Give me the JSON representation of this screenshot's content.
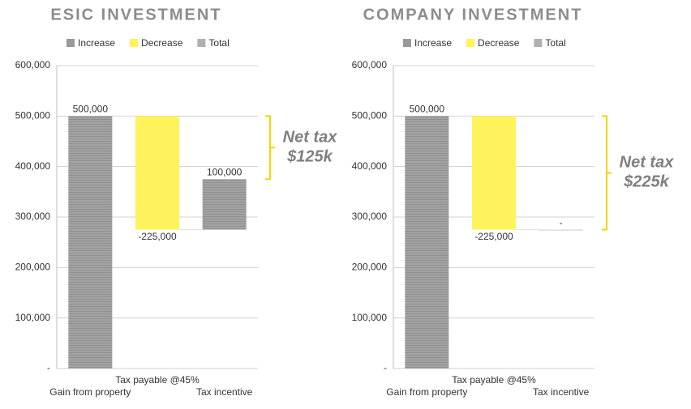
{
  "chart_data": [
    {
      "type": "waterfall",
      "title": "ESIC INVESTMENT",
      "legend": [
        {
          "name": "Increase",
          "color": "#9a9a9a"
        },
        {
          "name": "Decrease",
          "color": "#fff35c"
        },
        {
          "name": "Total",
          "color": "#b0b0b0"
        }
      ],
      "categories": [
        "Gain from property",
        "Tax payable @45%",
        "Tax incentive"
      ],
      "values": [
        500000,
        -225000,
        100000
      ],
      "value_labels": [
        "500,000",
        "-225,000",
        "100,000"
      ],
      "ylim": [
        0,
        600000
      ],
      "yticks": [
        {
          "value": 0,
          "label": "-"
        },
        {
          "value": 100000,
          "label": "100,000"
        },
        {
          "value": 200000,
          "label": "200,000"
        },
        {
          "value": 300000,
          "label": "300,000"
        },
        {
          "value": 400000,
          "label": "400,000"
        },
        {
          "value": 500000,
          "label": "500,000"
        },
        {
          "value": 600000,
          "label": "600,000"
        }
      ],
      "grid": true,
      "annotation": [
        "Net tax",
        "$125k"
      ]
    },
    {
      "type": "waterfall",
      "title": "COMPANY INVESTMENT",
      "legend": [
        {
          "name": "Increase",
          "color": "#9a9a9a"
        },
        {
          "name": "Decrease",
          "color": "#fff35c"
        },
        {
          "name": "Total",
          "color": "#b0b0b0"
        }
      ],
      "categories": [
        "Gain from property",
        "Tax payable @45%",
        "Tax incentive"
      ],
      "values": [
        500000,
        -225000,
        0
      ],
      "value_labels": [
        "500,000",
        "-225,000",
        "-"
      ],
      "ylim": [
        0,
        600000
      ],
      "yticks": [
        {
          "value": 0,
          "label": "-"
        },
        {
          "value": 100000,
          "label": "100,000"
        },
        {
          "value": 200000,
          "label": "200,000"
        },
        {
          "value": 300000,
          "label": "300,000"
        },
        {
          "value": 400000,
          "label": "400,000"
        },
        {
          "value": 500000,
          "label": "500,000"
        },
        {
          "value": 600000,
          "label": "600,000"
        }
      ],
      "grid": true,
      "annotation": [
        "Net tax",
        "$225k"
      ]
    }
  ]
}
